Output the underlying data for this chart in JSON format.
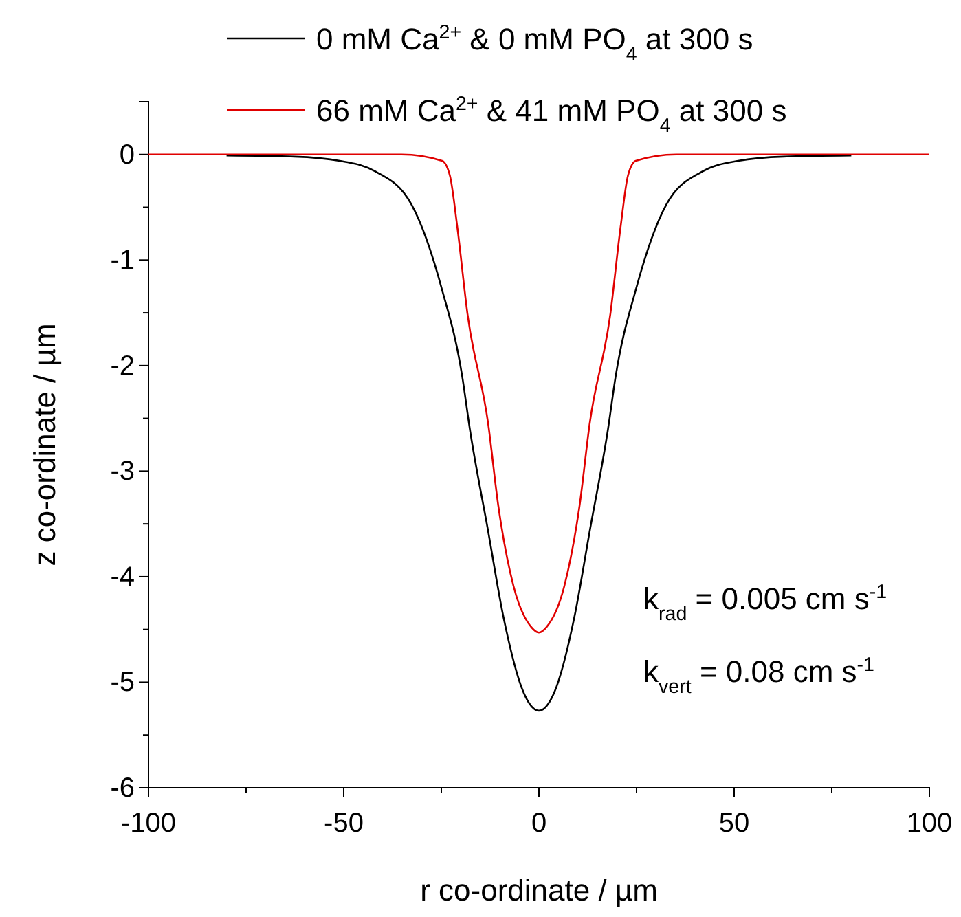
{
  "chart_data": {
    "type": "line",
    "xlabel": "r co-ordinate / µm",
    "ylabel": "z co-ordinate / µm",
    "xlim": [
      -100,
      100
    ],
    "ylim": [
      -6,
      0.5
    ],
    "xticks": [
      -100,
      {
        "value": -75,
        "label": null
      },
      -50,
      {
        "value": -25,
        "label": null
      },
      0,
      {
        "value": 25,
        "label": null
      },
      50,
      {
        "value": 75,
        "label": null
      },
      100
    ],
    "yticks": [
      -6,
      {
        "value": -5.5,
        "label": null
      },
      -5,
      {
        "value": -4.5,
        "label": null
      },
      -4,
      {
        "value": -3.5,
        "label": null
      },
      -3,
      {
        "value": -2.5,
        "label": null
      },
      -2,
      {
        "value": -1.5,
        "label": null
      },
      -1,
      {
        "value": -0.5,
        "label": null
      },
      0
    ],
    "grid": false,
    "legend": "top",
    "line_style": "solid",
    "marker": "none",
    "annotations": [
      "k$_{rad}$ = 0.005 cm s$^{-1}$",
      "k$_{vert}$ = 0.08 cm s$^{-1}$"
    ],
    "series": [
      {
        "name": "0 mM Ca$^{2+}$ & 0 mM PO$_{4}$ at 300 s",
        "color": "#000000",
        "x": [
          -80,
          -62.7,
          -51,
          -41.9,
          -32.7,
          -24.9,
          -19.7,
          -17.7,
          -13,
          -9.1,
          -3.9,
          0,
          3.9,
          9.1,
          13,
          17.7,
          19.7,
          24.9,
          32.7,
          41.9,
          51,
          62.7,
          80
        ],
        "values": [
          -0.01,
          -0.02,
          -0.06,
          -0.16,
          -0.47,
          -1.27,
          -2.09,
          -2.6,
          -3.57,
          -4.38,
          -5.1,
          -5.27,
          -5.1,
          -4.38,
          -3.57,
          -2.6,
          -2.09,
          -1.27,
          -0.47,
          -0.16,
          -0.06,
          -0.02,
          -0.01
        ]
      },
      {
        "name": "66 mM Ca$^{2+}$ & 41 mM PO$_{4}$ at 300 s",
        "color": "#e00000",
        "x": [
          -100,
          -35.2,
          -24.8,
          -22.8,
          -20.9,
          -18.3,
          -13,
          -10.4,
          -6.5,
          -1.9,
          0,
          1.9,
          6.5,
          10.4,
          13,
          18.3,
          20.9,
          22.8,
          24.8,
          35.2,
          100
        ],
        "values": [
          0,
          0,
          -0.06,
          -0.2,
          -0.69,
          -1.51,
          -2.55,
          -3.33,
          -4.09,
          -4.48,
          -4.53,
          -4.48,
          -4.09,
          -3.33,
          -2.55,
          -1.51,
          -0.69,
          -0.2,
          -0.06,
          0,
          0
        ]
      }
    ]
  }
}
